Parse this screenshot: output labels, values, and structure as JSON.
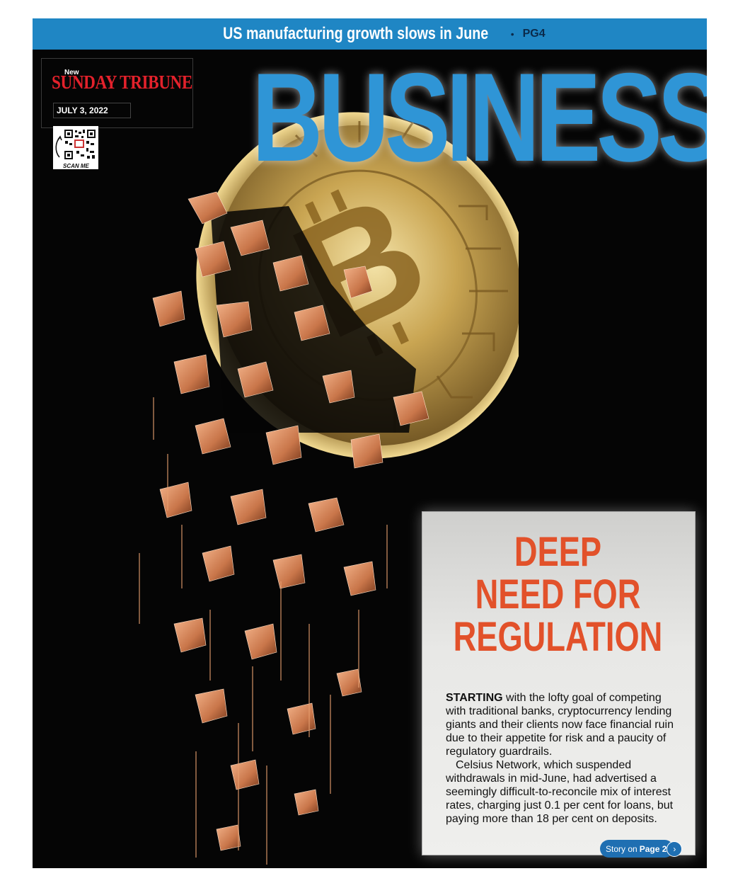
{
  "top_bar": {
    "headline": "US manufacturing growth slows in June",
    "bullet": "•",
    "page_ref": "PG4"
  },
  "masthead": {
    "new": "New",
    "title": "SUNDAY TRIBUNE",
    "date": "JULY 3, 2022"
  },
  "qr": {
    "icon": "qr-code-icon",
    "label": "SCAN ME"
  },
  "section": {
    "title": "BUSINESS"
  },
  "image": {
    "subject": "bitcoin-coin-icon"
  },
  "story": {
    "headline_line1": "DEEP",
    "headline_line2": "NEED FOR",
    "headline_line3": "REGULATION",
    "lead_word": "STARTING",
    "para1_rest": " with the lofty goal of competing with traditional banks, cryptocurrency lending giants and their clients now face financial ruin due to their appetite for risk and a paucity of regulatory guardrails.",
    "para2": "Celsius Network, which suspended withdrawals in mid-June, had advertised a seemingly difficult-to-reconcile mix of interest rates, charging just 0.1 per cent for loans, but paying more than 18 per cent on deposits.",
    "link_prefix": "Story on",
    "link_page": "Page 2",
    "link_icon": "chevron-right-icon"
  },
  "colors": {
    "accent_blue": "#1f86c4",
    "headline_orange": "#e2512a",
    "masthead_red": "#e3212b",
    "coin_gold": "#c8a24a"
  }
}
